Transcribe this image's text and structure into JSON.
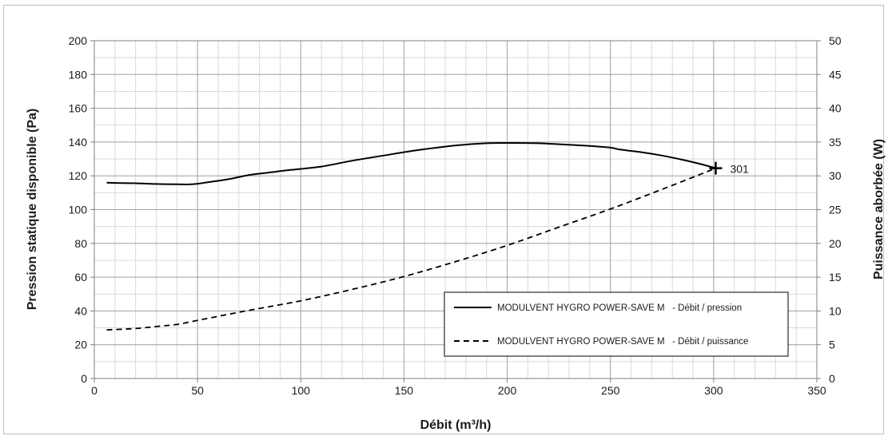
{
  "chart_data": {
    "type": "line",
    "xlabel": "Débit (m³/h)",
    "ylabel": "Pression statique disponible (Pa)",
    "y2label": "Puissance aborbée (W)",
    "xlim": [
      0,
      350
    ],
    "ylim": [
      0,
      200
    ],
    "y2lim": [
      0,
      50
    ],
    "x_ticks": [
      0,
      50,
      100,
      150,
      200,
      250,
      300,
      350
    ],
    "y_ticks": [
      0,
      20,
      40,
      60,
      80,
      100,
      120,
      140,
      160,
      180,
      200
    ],
    "y2_ticks": [
      0,
      5,
      10,
      15,
      20,
      25,
      30,
      35,
      40,
      45,
      50
    ],
    "grid": true,
    "legend_position": "bottom-right",
    "series": [
      {
        "name": "MODULVENT HYGRO POWER-SAVE M   - Débit / pression",
        "axis": "left",
        "style": "solid",
        "x": [
          6,
          10,
          20,
          30,
          40,
          47,
          55,
          65,
          75,
          85,
          95,
          110,
          125,
          140,
          150,
          160,
          175,
          190,
          200,
          215,
          225,
          240,
          250,
          255,
          265,
          275,
          285,
          293,
          301
        ],
        "y": [
          116,
          115.8,
          115.6,
          115.2,
          115,
          115,
          116.2,
          118,
          120.5,
          122,
          123.5,
          125.5,
          129,
          132,
          134,
          135.8,
          138,
          139.3,
          139.5,
          139.3,
          138.7,
          137.7,
          136.7,
          135.5,
          134,
          132,
          129.5,
          127.2,
          124.5
        ]
      },
      {
        "name": "MODULVENT HYGRO POWER-SAVE M   - Débit / puissance",
        "axis": "right",
        "style": "dashed",
        "x": [
          6,
          20,
          30,
          40,
          50,
          75,
          100,
          125,
          150,
          175,
          200,
          225,
          250,
          275,
          300
        ],
        "y": [
          7.2,
          7.4,
          7.7,
          8,
          8.6,
          10.1,
          11.5,
          13.2,
          15.1,
          17.3,
          19.7,
          22.4,
          25.1,
          28,
          31
        ]
      }
    ],
    "annotations": [
      {
        "text": "301",
        "x": 301,
        "y": 124.5,
        "marker": "cross"
      }
    ]
  }
}
